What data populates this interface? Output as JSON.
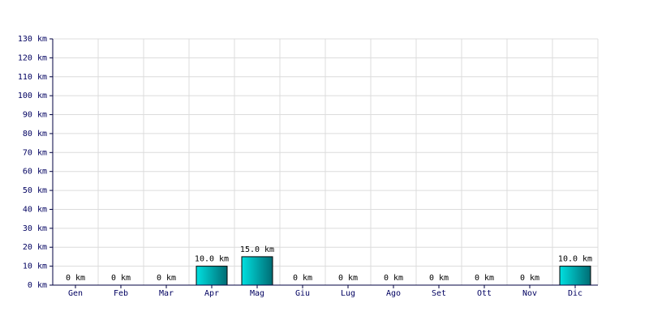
{
  "chart_data": {
    "type": "bar",
    "categories": [
      "Gen",
      "Feb",
      "Mar",
      "Apr",
      "Mag",
      "Giu",
      "Lug",
      "Ago",
      "Set",
      "Ott",
      "Nov",
      "Dic"
    ],
    "values": [
      0,
      0,
      0,
      10,
      15,
      0,
      0,
      0,
      0,
      0,
      0,
      10
    ],
    "value_labels": [
      "0 km",
      "0 km",
      "0 km",
      "10.0 km",
      "15.0 km",
      "0 km",
      "0 km",
      "0 km",
      "0 km",
      "0 km",
      "0 km",
      "10.0 km"
    ],
    "color": "#00e0e0",
    "ylim": [
      0,
      130
    ],
    "yticks": [
      {
        "value": 0,
        "label": "0 km"
      },
      {
        "value": 10,
        "label": "10 km"
      },
      {
        "value": 20,
        "label": "20 km"
      },
      {
        "value": 30,
        "label": "30 km"
      },
      {
        "value": 40,
        "label": "40 km"
      },
      {
        "value": 50,
        "label": "50 km"
      },
      {
        "value": 60,
        "label": "60 km"
      },
      {
        "value": 70,
        "label": "70 km"
      },
      {
        "value": 80,
        "label": "80 km"
      },
      {
        "value": 90,
        "label": "90 km"
      },
      {
        "value": 100,
        "label": "100 km"
      },
      {
        "value": 110,
        "label": "110 km"
      },
      {
        "value": 120,
        "label": "120 km"
      },
      {
        "value": 130,
        "label": "130 km"
      }
    ],
    "grid": true
  }
}
